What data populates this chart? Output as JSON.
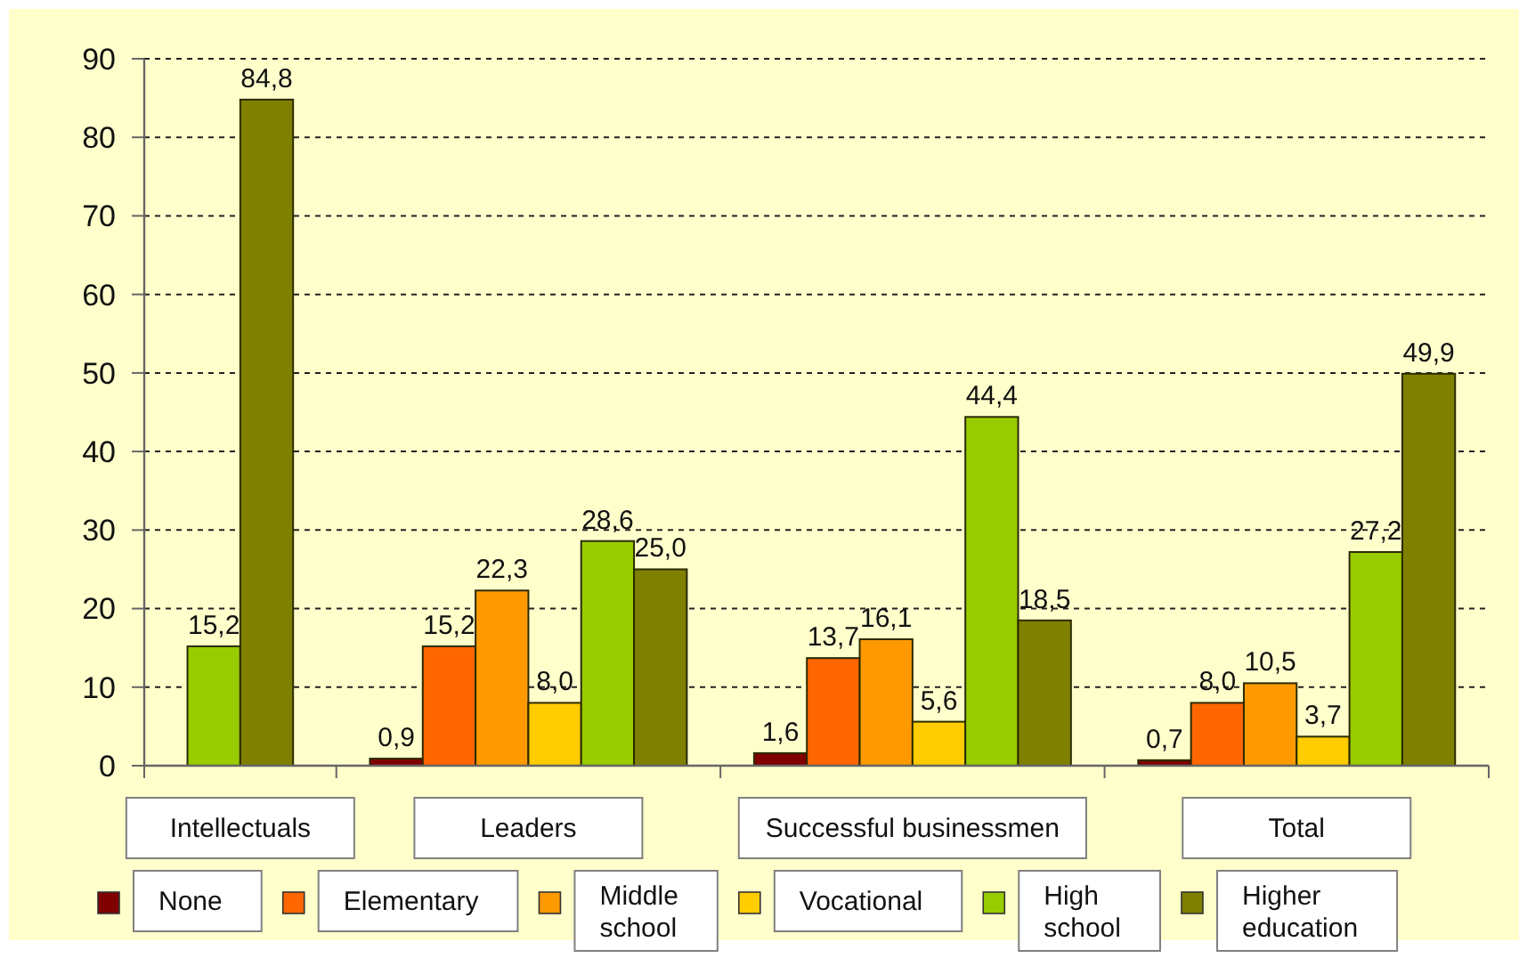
{
  "chart_data": {
    "type": "bar",
    "categories": [
      "Intellectuals",
      "Leaders",
      "Successful businessmen",
      "Total"
    ],
    "series": [
      {
        "name": "None",
        "color": "#800000",
        "values": [
          null,
          0.9,
          1.6,
          0.7
        ],
        "value_labels": [
          null,
          "0,9",
          "1,6",
          "0,7"
        ]
      },
      {
        "name": "Elementary",
        "color": "#ff6600",
        "values": [
          null,
          15.2,
          13.7,
          8.0
        ],
        "value_labels": [
          null,
          "15,2",
          "13,7",
          "8,0"
        ]
      },
      {
        "name": "Middle school",
        "color": "#ff9900",
        "values": [
          null,
          22.3,
          16.1,
          10.5
        ],
        "value_labels": [
          null,
          "22,3",
          "16,1",
          "10,5"
        ]
      },
      {
        "name": "Vocational",
        "color": "#ffcc00",
        "values": [
          null,
          8.0,
          5.6,
          3.7
        ],
        "value_labels": [
          null,
          "8,0",
          "5,6",
          "3,7"
        ]
      },
      {
        "name": "High school",
        "color": "#99cc00",
        "values": [
          15.2,
          28.6,
          44.4,
          27.2
        ],
        "value_labels": [
          "15,2",
          "28,6",
          "44,4",
          "27,2"
        ]
      },
      {
        "name": "Higher education",
        "color": "#808000",
        "values": [
          84.8,
          25.0,
          18.5,
          49.9
        ],
        "value_labels": [
          "84,8",
          "25,0",
          "18,5",
          "49,9"
        ]
      }
    ],
    "ylim": [
      0,
      90
    ],
    "yticks": [
      0,
      10,
      20,
      30,
      40,
      50,
      60,
      70,
      80,
      90
    ],
    "grid": "y",
    "legend": "bottom"
  }
}
